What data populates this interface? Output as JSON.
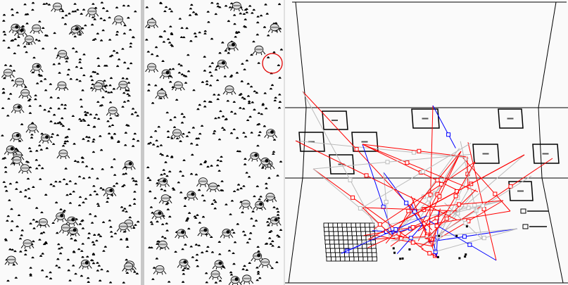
{
  "colors": {
    "background": "#fafafa",
    "divider": "#c8c8c8",
    "dot": "#000000",
    "link_red": "#ff0000",
    "link_blue": "#0000ff",
    "link_gray": "#bbbbbb",
    "highlight_circle": "#e00000"
  },
  "icons": {
    "agent": "frog-icon",
    "resource": "dot-icon",
    "node": "square-node-icon"
  }
}
